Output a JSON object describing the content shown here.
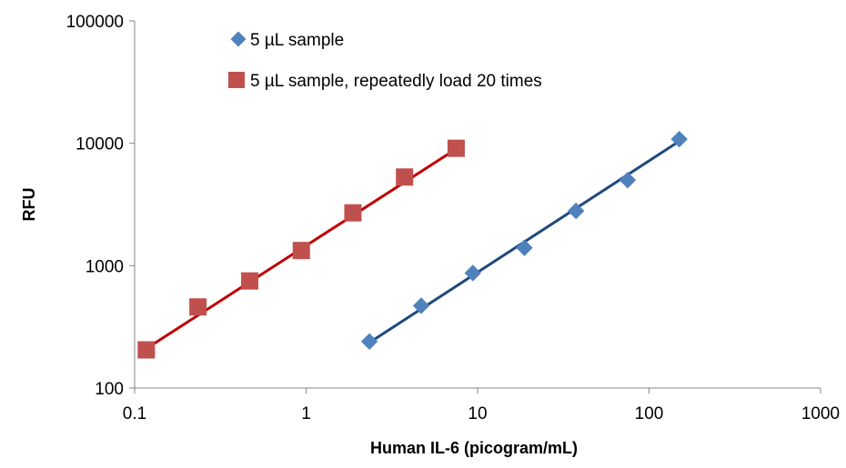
{
  "chart_data": {
    "type": "scatter",
    "title": "",
    "xlabel": "Human IL-6 (picogram/mL)",
    "ylabel": "RFU",
    "xscale": "log",
    "yscale": "log",
    "xlim": [
      0.1,
      1000
    ],
    "ylim": [
      100,
      100000
    ],
    "xticks": [
      "0.1",
      "1",
      "10",
      "100",
      "1000"
    ],
    "yticks": [
      "100",
      "1000",
      "10000",
      "100000"
    ],
    "grid": false,
    "legend_position": "top",
    "series": [
      {
        "name": "5 µL sample",
        "marker": "diamond",
        "color": "#4f81bd",
        "line_color": "#1f497d",
        "x": [
          2.34,
          4.69,
          9.38,
          18.75,
          37.5,
          75,
          150
        ],
        "y": [
          240,
          470,
          870,
          1400,
          2800,
          5000,
          10800
        ],
        "trendline": {
          "x": [
            2.34,
            150
          ],
          "y": [
            235,
            10400
          ]
        }
      },
      {
        "name": "5 µL sample, repeatedly load 20 times",
        "marker": "square",
        "color": "#c0504d",
        "line_color": "#c00000",
        "x": [
          0.117,
          0.234,
          0.469,
          0.938,
          1.875,
          3.75,
          7.5
        ],
        "y": [
          205,
          460,
          750,
          1330,
          2700,
          5300,
          9100
        ],
        "trendline": {
          "x": [
            0.117,
            7.5
          ],
          "y": [
            210,
            9000
          ]
        }
      }
    ]
  }
}
